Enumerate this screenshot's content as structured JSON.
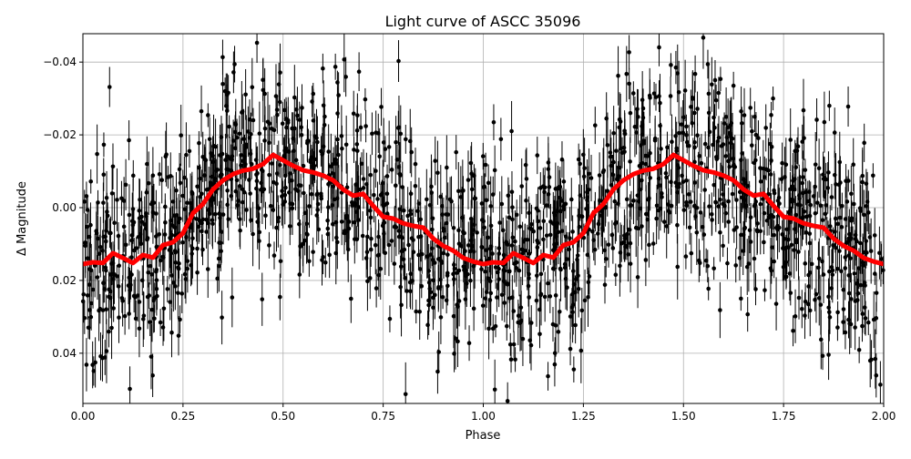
{
  "chart_data": {
    "type": "scatter",
    "title": "Light curve of ASCC 35096",
    "xlabel": "Phase",
    "ylabel": "Δ Magnitude",
    "xlim": [
      0,
      2
    ],
    "ylim": [
      0.0538,
      -0.0478
    ],
    "y_inverted": true,
    "grid": true,
    "xticks": [
      "0.00",
      "0.25",
      "0.50",
      "0.75",
      "1.00",
      "1.25",
      "1.50",
      "1.75",
      "2.00"
    ],
    "yticks": [
      "−0.04",
      "−0.02",
      "0.00",
      "0.02",
      "0.04"
    ],
    "ytick_values": [
      -0.04,
      -0.02,
      0,
      0.02,
      0.04
    ],
    "colors": {
      "points": "#000000",
      "binned_curve": "#ff0000"
    },
    "series": [
      {
        "kind": "binned-curve",
        "x": [
          0,
          0.025,
          0.05,
          0.075,
          0.1,
          0.125,
          0.15,
          0.175,
          0.2,
          0.225,
          0.25,
          0.275,
          0.3,
          0.325,
          0.35,
          0.375,
          0.4,
          0.425,
          0.45,
          0.475,
          0.5,
          0.525,
          0.55,
          0.575,
          0.6,
          0.625,
          0.65,
          0.675,
          0.7,
          0.725,
          0.75,
          0.775,
          0.8,
          0.825,
          0.85,
          0.875,
          0.9,
          0.925,
          0.95,
          0.975,
          1.0,
          1.025,
          1.05,
          1.075,
          1.1,
          1.125,
          1.15,
          1.175,
          1.2,
          1.225,
          1.25,
          1.275,
          1.3,
          1.325,
          1.35,
          1.375,
          1.4,
          1.425,
          1.45,
          1.475,
          1.5,
          1.525,
          1.55,
          1.575,
          1.6,
          1.625,
          1.65,
          1.675,
          1.7,
          1.725,
          1.75,
          1.775,
          1.8,
          1.825,
          1.85,
          1.875,
          1.9,
          1.925,
          1.95,
          1.975,
          2.0
        ],
        "y": [
          0.0155,
          0.015,
          0.0152,
          0.0125,
          0.0138,
          0.0152,
          0.013,
          0.0137,
          0.0103,
          0.0095,
          0.007,
          0.0015,
          -0.001,
          -0.005,
          -0.0075,
          -0.0092,
          -0.0102,
          -0.0107,
          -0.012,
          -0.0145,
          -0.013,
          -0.0115,
          -0.0103,
          -0.0097,
          -0.0088,
          -0.0075,
          -0.005,
          -0.0033,
          -0.0038,
          -0.0005,
          0.0025,
          0.003,
          0.0043,
          0.005,
          0.0055,
          0.0085,
          0.0105,
          0.0118,
          0.0138,
          0.0148,
          0.0155,
          0.015,
          0.0152,
          0.0125,
          0.0138,
          0.0152,
          0.013,
          0.0137,
          0.0103,
          0.0095,
          0.007,
          0.0015,
          -0.001,
          -0.005,
          -0.0075,
          -0.0092,
          -0.0102,
          -0.0107,
          -0.012,
          -0.0145,
          -0.013,
          -0.0115,
          -0.0103,
          -0.0097,
          -0.0088,
          -0.0075,
          -0.005,
          -0.0033,
          -0.0038,
          -0.0005,
          0.0025,
          0.003,
          0.0043,
          0.005,
          0.0055,
          0.0085,
          0.0105,
          0.0118,
          0.0138,
          0.0148,
          0.0155
        ]
      }
    ]
  }
}
